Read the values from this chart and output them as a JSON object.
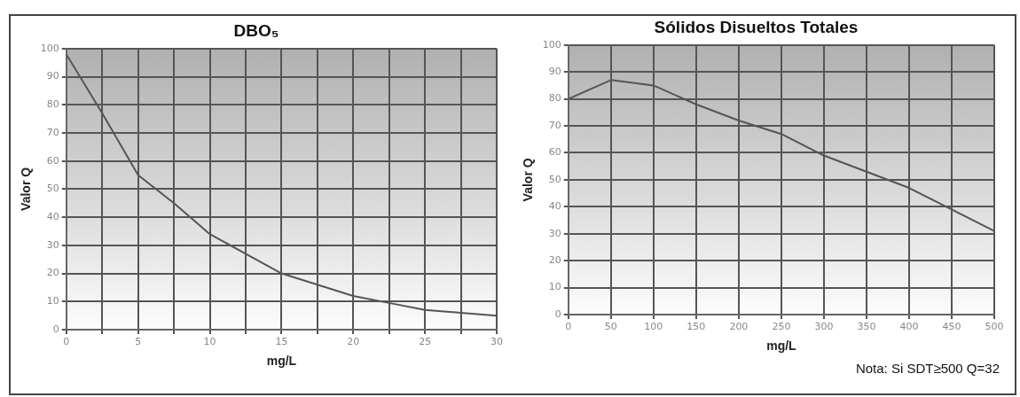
{
  "chart_data": [
    {
      "type": "line",
      "title": "DBO₅",
      "xlabel": "mg/L",
      "ylabel": "Valor Q",
      "x": [
        0,
        2.5,
        5,
        7.5,
        10,
        12.5,
        15,
        17.5,
        20,
        22.5,
        25,
        27.5,
        30
      ],
      "series": [
        {
          "color": "#555555",
          "values": [
            98,
            77,
            55,
            45,
            34,
            27,
            20,
            16,
            12,
            9.5,
            7,
            6,
            5
          ]
        }
      ],
      "xlim": [
        0,
        30
      ],
      "xticks": [
        0,
        {
          "value": 2.5,
          "label": null
        },
        5,
        {
          "value": 7.5,
          "label": null
        },
        10,
        {
          "value": 12.5,
          "label": null
        },
        15,
        {
          "value": 17.5,
          "label": null
        },
        20,
        {
          "value": 22.5,
          "label": null
        },
        25,
        {
          "value": 27.5,
          "label": null
        },
        30
      ],
      "ylim": [
        0,
        100
      ],
      "yticks": [
        0,
        10,
        20,
        30,
        40,
        50,
        60,
        70,
        80,
        90,
        100
      ],
      "grid": true,
      "legend": false,
      "marker": "none",
      "line_style": "solid"
    },
    {
      "type": "line",
      "title": "Sólidos Disueltos Totales",
      "xlabel": "mg/L",
      "ylabel": "Valor Q",
      "x": [
        0,
        50,
        100,
        150,
        200,
        250,
        300,
        350,
        400,
        450,
        500
      ],
      "series": [
        {
          "color": "#555555",
          "values": [
            80,
            87,
            85,
            78,
            72,
            67,
            59,
            53,
            47,
            39,
            31
          ]
        }
      ],
      "xlim": [
        0,
        500
      ],
      "xticks": [
        0,
        50,
        100,
        150,
        200,
        250,
        300,
        350,
        400,
        450,
        500
      ],
      "ylim": [
        0,
        100
      ],
      "yticks": [
        0,
        10,
        20,
        30,
        40,
        50,
        60,
        70,
        80,
        90,
        100
      ],
      "grid": true,
      "legend": false,
      "marker": "none",
      "line_style": "solid",
      "annotations": [
        "Nota: Si SDT≥500 Q=32"
      ]
    }
  ]
}
